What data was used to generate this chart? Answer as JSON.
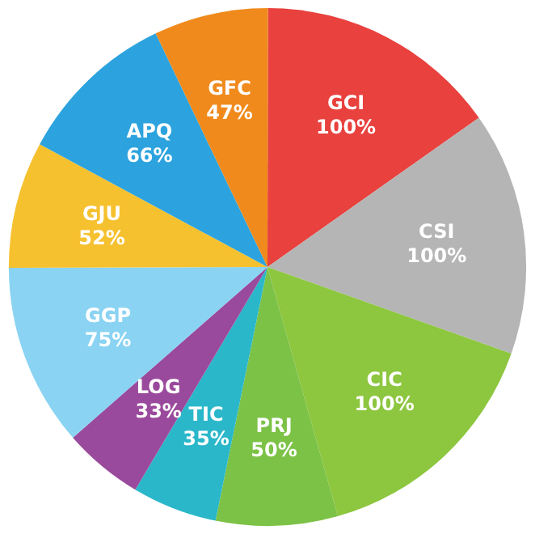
{
  "chart_data": {
    "type": "pie",
    "categories": [
      "GCI",
      "CSI",
      "CIC",
      "PRJ",
      "TIC",
      "LOG",
      "GGP",
      "GJU",
      "APQ",
      "GFC"
    ],
    "values": [
      100,
      100,
      100,
      50,
      35,
      33,
      75,
      52,
      66,
      47
    ],
    "value_labels": [
      "100%",
      "100%",
      "100%",
      "50%",
      "35%",
      "33%",
      "75%",
      "52%",
      "66%",
      "47%"
    ],
    "colors": [
      "#e8413e",
      "#b5b5b5",
      "#8dc63f",
      "#7cc246",
      "#2ab7c9",
      "#9a4a9c",
      "#8ad3f2",
      "#f6c12f",
      "#2ca3de",
      "#f08a1c"
    ],
    "legend": false
  }
}
